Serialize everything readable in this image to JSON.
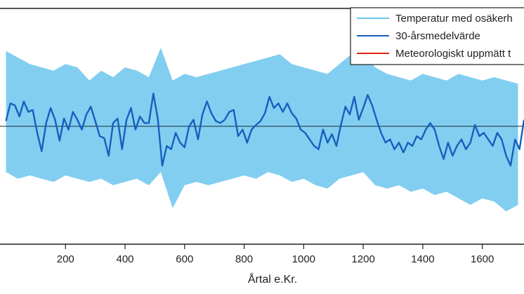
{
  "chart_data": {
    "type": "line",
    "title": "",
    "xlabel": "Årtal e.Kr.",
    "ylabel": "",
    "xlim": [
      -20,
      1740
    ],
    "ylim": [
      -1.8,
      1.8
    ],
    "xticks": [
      200,
      400,
      600,
      800,
      1000,
      1200,
      1400,
      1600
    ],
    "reference_line_y": 0.0,
    "legend_position": "top-right",
    "series": [
      {
        "name": "Temperatur med osäkerh",
        "color": "#6cc6ee",
        "style": "band",
        "x": [
          0,
          40,
          80,
          120,
          160,
          200,
          240,
          280,
          320,
          360,
          400,
          440,
          480,
          520,
          560,
          600,
          640,
          680,
          720,
          760,
          800,
          840,
          880,
          920,
          960,
          1000,
          1040,
          1080,
          1120,
          1160,
          1200,
          1240,
          1280,
          1320,
          1360,
          1400,
          1440,
          1480,
          1520,
          1560,
          1600,
          1640,
          1680,
          1720
        ],
        "upper": [
          1.15,
          1.05,
          0.95,
          0.9,
          0.85,
          0.95,
          0.9,
          0.7,
          0.85,
          0.75,
          0.9,
          0.85,
          0.75,
          1.2,
          0.7,
          0.8,
          0.75,
          0.8,
          0.85,
          0.9,
          0.95,
          1.0,
          1.05,
          1.1,
          0.95,
          0.9,
          0.85,
          0.8,
          0.95,
          1.1,
          1.15,
          0.9,
          0.8,
          0.75,
          0.7,
          0.8,
          0.75,
          0.7,
          0.8,
          0.75,
          0.7,
          0.75,
          0.7,
          0.65
        ],
        "lower": [
          -0.7,
          -0.8,
          -0.75,
          -0.8,
          -0.85,
          -0.75,
          -0.8,
          -0.85,
          -0.8,
          -0.9,
          -0.85,
          -0.8,
          -0.9,
          -0.7,
          -1.25,
          -0.9,
          -0.85,
          -0.9,
          -0.85,
          -0.8,
          -0.75,
          -0.8,
          -0.7,
          -0.75,
          -0.85,
          -0.8,
          -0.9,
          -0.95,
          -0.8,
          -0.75,
          -0.7,
          -0.9,
          -0.95,
          -0.9,
          -1.0,
          -0.95,
          -1.05,
          -1.0,
          -1.1,
          -1.2,
          -1.1,
          -1.15,
          -1.3,
          -1.2
        ]
      },
      {
        "name": "30-årsmedelvärde",
        "color": "#1560bd",
        "style": "line",
        "x": [
          0,
          15,
          30,
          45,
          60,
          75,
          90,
          105,
          120,
          135,
          150,
          165,
          180,
          195,
          210,
          225,
          240,
          255,
          270,
          285,
          300,
          315,
          330,
          345,
          360,
          375,
          390,
          405,
          420,
          435,
          450,
          465,
          480,
          495,
          510,
          525,
          540,
          555,
          570,
          585,
          600,
          615,
          630,
          645,
          660,
          675,
          690,
          705,
          720,
          735,
          750,
          765,
          780,
          795,
          810,
          825,
          840,
          855,
          870,
          885,
          900,
          915,
          930,
          945,
          960,
          975,
          990,
          1005,
          1020,
          1035,
          1050,
          1065,
          1080,
          1095,
          1110,
          1125,
          1140,
          1155,
          1170,
          1185,
          1200,
          1215,
          1230,
          1245,
          1260,
          1275,
          1290,
          1305,
          1320,
          1335,
          1350,
          1365,
          1380,
          1395,
          1410,
          1425,
          1440,
          1455,
          1470,
          1485,
          1500,
          1515,
          1530,
          1545,
          1560,
          1575,
          1590,
          1605,
          1620,
          1635,
          1650,
          1665,
          1680,
          1695,
          1710,
          1725,
          1740
        ],
        "y": [
          0.08,
          0.35,
          0.32,
          0.15,
          0.38,
          0.22,
          0.25,
          -0.1,
          -0.38,
          0.05,
          0.28,
          0.1,
          -0.22,
          0.12,
          -0.05,
          0.22,
          0.1,
          -0.05,
          0.18,
          0.3,
          0.08,
          -0.15,
          -0.18,
          -0.45,
          0.05,
          0.12,
          -0.35,
          0.1,
          0.28,
          -0.05,
          0.15,
          0.05,
          0.05,
          0.5,
          0.12,
          -0.6,
          -0.3,
          -0.35,
          -0.1,
          -0.25,
          -0.32,
          0.0,
          0.1,
          -0.2,
          0.18,
          0.38,
          0.2,
          0.08,
          0.05,
          0.1,
          0.22,
          0.25,
          -0.15,
          -0.05,
          -0.25,
          -0.05,
          0.02,
          0.08,
          0.2,
          0.45,
          0.28,
          0.35,
          0.22,
          0.35,
          0.2,
          0.12,
          -0.05,
          -0.1,
          -0.2,
          -0.3,
          -0.35,
          -0.05,
          -0.25,
          -0.12,
          -0.3,
          0.02,
          0.3,
          0.18,
          0.45,
          0.1,
          0.28,
          0.48,
          0.32,
          0.1,
          -0.1,
          -0.25,
          -0.2,
          -0.35,
          -0.25,
          -0.4,
          -0.25,
          -0.3,
          -0.15,
          -0.2,
          -0.05,
          0.05,
          -0.05,
          -0.3,
          -0.5,
          -0.25,
          -0.45,
          -0.3,
          -0.2,
          -0.35,
          -0.25,
          0.02,
          -0.15,
          -0.1,
          -0.2,
          -0.3,
          -0.1,
          -0.2,
          -0.45,
          -0.6,
          -0.2,
          -0.35,
          0.1
        ]
      },
      {
        "name": "Meteorologiskt uppmätt t",
        "color": "#e2231a",
        "style": "line",
        "x": [],
        "y": []
      }
    ]
  }
}
